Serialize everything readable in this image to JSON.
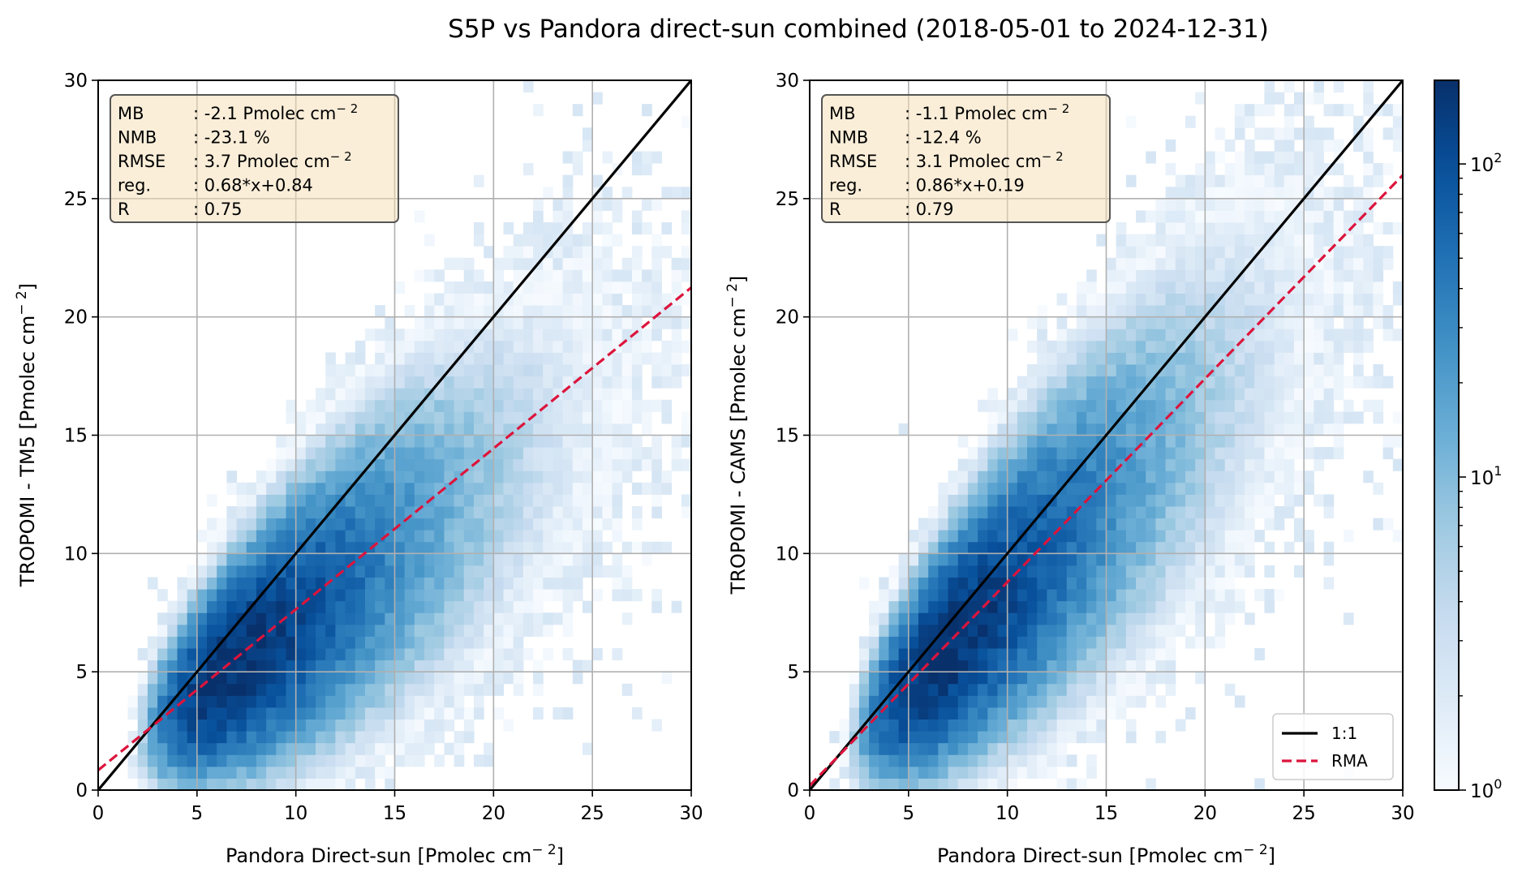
{
  "chart_data": {
    "type": "heatmap",
    "title": "S5P vs Pandora direct-sun combined (2018-05-01 to 2024-12-31)",
    "bin_width": 0.5,
    "colormap": [
      "#f7fbff",
      "#deebf7",
      "#c6dbef",
      "#9ecae1",
      "#6baed6",
      "#4292c6",
      "#2171b5",
      "#08519c",
      "#08306b"
    ],
    "color_scale": {
      "type": "log",
      "min": 1,
      "max": 185,
      "ticks": [
        {
          "value": 1,
          "base": "10",
          "exp": "0"
        },
        {
          "value": 10,
          "base": "10",
          "exp": "1"
        },
        {
          "value": 100,
          "base": "10",
          "exp": "2"
        }
      ]
    },
    "one_to_one_color": "#000000",
    "rma_color": "#dc143c",
    "panels": [
      {
        "name": "tm5",
        "xlabel": "Pandora Direct-sun [Pmolec cm",
        "xlabel_sup": "− 2",
        "xlabel_end": "]",
        "ylabel": "TROPOMI - TM5 [Pmolec cm",
        "ylabel_sup": "− 2",
        "ylabel_end": "]",
        "xlim": [
          0,
          30
        ],
        "ylim": [
          0,
          30
        ],
        "xticks": [
          "0",
          "5",
          "10",
          "15",
          "20",
          "25",
          "30"
        ],
        "yticks": [
          "0",
          "5",
          "10",
          "15",
          "20",
          "25",
          "30"
        ],
        "grid": true,
        "rma": {
          "slope": 0.68,
          "intercept": 0.84
        },
        "density": {
          "slope": 0.62,
          "intercept": 0.95,
          "peak_x": 6.8,
          "peak": 185,
          "spread0": 0.75,
          "spread1": 0.12,
          "seed": 11
        },
        "stats": [
          {
            "label": "MB",
            "value": ": -2.1 Pmolec cm",
            "sup": "− 2"
          },
          {
            "label": "NMB",
            "value": ": -23.1 %",
            "sup": ""
          },
          {
            "label": "RMSE",
            "value": ": 3.7 Pmolec cm",
            "sup": "− 2"
          },
          {
            "label": "reg.",
            "value": ": 0.68*x+0.84",
            "sup": ""
          },
          {
            "label": "R",
            "value": ": 0.75",
            "sup": ""
          }
        ]
      },
      {
        "name": "cams",
        "xlabel": "Pandora Direct-sun [Pmolec cm",
        "xlabel_sup": "− 2",
        "xlabel_end": "]",
        "ylabel": "TROPOMI - CAMS [Pmolec cm",
        "ylabel_sup": "− 2",
        "ylabel_end": "]",
        "xlim": [
          0,
          30
        ],
        "ylim": [
          0,
          30
        ],
        "xticks": [
          "0",
          "5",
          "10",
          "15",
          "20",
          "25",
          "30"
        ],
        "yticks": [
          "0",
          "5",
          "10",
          "15",
          "20",
          "25",
          "30"
        ],
        "grid": true,
        "rma": {
          "slope": 0.86,
          "intercept": 0.19
        },
        "density": {
          "slope": 0.8,
          "intercept": 0.35,
          "peak_x": 6.8,
          "peak": 185,
          "spread0": 0.75,
          "spread1": 0.13,
          "seed": 29
        },
        "stats": [
          {
            "label": "MB",
            "value": ": -1.1 Pmolec cm",
            "sup": "− 2"
          },
          {
            "label": "NMB",
            "value": ": -12.4 %",
            "sup": ""
          },
          {
            "label": "RMSE",
            "value": ": 3.1 Pmolec cm",
            "sup": "− 2"
          },
          {
            "label": "reg.",
            "value": ": 0.86*x+0.19",
            "sup": ""
          },
          {
            "label": "R",
            "value": ": 0.79",
            "sup": ""
          }
        ],
        "legend": {
          "placement": "lower-right",
          "entries": [
            "1:1",
            "RMA"
          ]
        }
      }
    ]
  }
}
